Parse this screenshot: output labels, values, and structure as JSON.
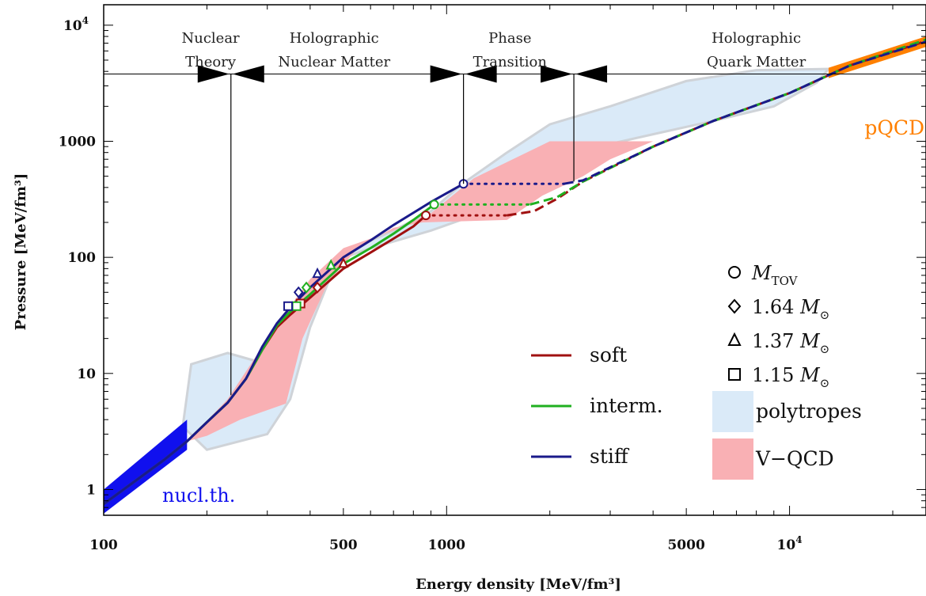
{
  "chart_data": {
    "type": "line",
    "xlabel": "Energy density [MeV/fm³]",
    "ylabel": "Pressure [MeV/fm³]",
    "xscale": "log",
    "yscale": "log",
    "xlim": [
      100,
      25000
    ],
    "ylim": [
      0.6,
      15000
    ],
    "x_ticks": [
      {
        "value": 100,
        "label": "100"
      },
      {
        "value": 500,
        "label": "500"
      },
      {
        "value": 1000,
        "label": "1000"
      },
      {
        "value": 5000,
        "label": "5000"
      },
      {
        "value": 10000,
        "label": "10",
        "sup": "4"
      }
    ],
    "y_ticks": [
      {
        "value": 1,
        "label": "1"
      },
      {
        "value": 10,
        "label": "10"
      },
      {
        "value": 100,
        "label": "100"
      },
      {
        "value": 1000,
        "label": "1000"
      },
      {
        "value": 10000,
        "label": "10",
        "sup": "4"
      }
    ],
    "regions": [
      {
        "line1": "Nuclear",
        "line2": "Theory",
        "x": 205
      },
      {
        "line1": "Holographic",
        "line2": "Nuclear  Matter",
        "x": 470
      },
      {
        "line1": "Phase",
        "line2": "Transition",
        "x": 1530
      },
      {
        "line1": "Holographic",
        "line2": "Quark  Matter",
        "x": 8000
      }
    ],
    "boundaries": [
      {
        "x": 235,
        "y_low": 6.5
      },
      {
        "x": 1120,
        "y_low": 430
      },
      {
        "x": 2350,
        "y_low": 450
      }
    ],
    "region_bar_y": 3800,
    "bands": [
      {
        "name": "polytropes",
        "color": "#daeaf8",
        "points": [
          [
            170,
            3.5
          ],
          [
            180,
            12
          ],
          [
            230,
            15
          ],
          [
            300,
            12
          ],
          [
            350,
            25
          ],
          [
            400,
            55
          ],
          [
            500,
            110
          ],
          [
            700,
            170
          ],
          [
            900,
            250
          ],
          [
            1100,
            420
          ],
          [
            1500,
            800
          ],
          [
            2000,
            1400
          ],
          [
            3000,
            2000
          ],
          [
            5000,
            3300
          ],
          [
            8000,
            4100
          ],
          [
            13000,
            4200
          ],
          [
            12000,
            3200
          ],
          [
            9000,
            2000
          ],
          [
            6000,
            1500
          ],
          [
            4000,
            1150
          ],
          [
            3000,
            950
          ],
          [
            2000,
            600
          ],
          [
            1400,
            270
          ],
          [
            900,
            170
          ],
          [
            600,
            120
          ],
          [
            480,
            95
          ],
          [
            400,
            25
          ],
          [
            350,
            6
          ],
          [
            300,
            3
          ],
          [
            200,
            2.2
          ]
        ]
      },
      {
        "name": "V−QCD",
        "color": "#f9b0b4",
        "points": [
          [
            175,
            2.6
          ],
          [
            230,
            6
          ],
          [
            290,
            17
          ],
          [
            330,
            30
          ],
          [
            400,
            65
          ],
          [
            500,
            120
          ],
          [
            700,
            170
          ],
          [
            900,
            240
          ],
          [
            1200,
            480
          ],
          [
            2000,
            1000
          ],
          [
            4000,
            1000
          ],
          [
            3000,
            700
          ],
          [
            2500,
            500
          ],
          [
            1900,
            340
          ],
          [
            1500,
            210
          ],
          [
            850,
            200
          ],
          [
            700,
            180
          ],
          [
            550,
            120
          ],
          [
            450,
            60
          ],
          [
            380,
            20
          ],
          [
            340,
            5.5
          ],
          [
            250,
            4
          ],
          [
            200,
            2.9
          ]
        ]
      }
    ],
    "nucl_th": {
      "name": "nucl.th.",
      "color": "#1010ee",
      "points": [
        [
          100,
          0.62
        ],
        [
          175,
          2.2
        ],
        [
          175,
          4.0
        ],
        [
          100,
          1.0
        ]
      ]
    },
    "pqcd": {
      "name": "pQCD",
      "color": "#ff8000",
      "points": [
        [
          13000,
          3500
        ],
        [
          25000,
          6500
        ],
        [
          25000,
          8000
        ],
        [
          13000,
          4300
        ]
      ]
    },
    "series": [
      {
        "name": "soft",
        "color": "#a01010",
        "solid": [
          [
            100,
            0.75
          ],
          [
            150,
            1.8
          ],
          [
            175,
            2.6
          ],
          [
            200,
            3.8
          ],
          [
            230,
            5.6
          ],
          [
            260,
            9
          ],
          [
            290,
            16
          ],
          [
            320,
            25
          ],
          [
            350,
            32
          ],
          [
            400,
            45
          ],
          [
            500,
            80
          ],
          [
            600,
            110
          ],
          [
            700,
            145
          ],
          [
            800,
            185
          ],
          [
            870,
            230
          ]
        ],
        "dotted": [
          [
            870,
            230
          ],
          [
            1500,
            230
          ]
        ],
        "dashed": [
          [
            1500,
            230
          ],
          [
            1800,
            250
          ],
          [
            2100,
            320
          ],
          [
            2500,
            450
          ],
          [
            4000,
            900
          ],
          [
            6000,
            1500
          ],
          [
            10000,
            2600
          ],
          [
            15000,
            4500
          ],
          [
            25000,
            7300
          ]
        ]
      },
      {
        "name": "interm.",
        "color": "#20b020",
        "solid": [
          [
            100,
            0.75
          ],
          [
            150,
            1.8
          ],
          [
            175,
            2.6
          ],
          [
            200,
            3.8
          ],
          [
            230,
            5.6
          ],
          [
            260,
            9
          ],
          [
            290,
            16
          ],
          [
            320,
            26
          ],
          [
            350,
            34
          ],
          [
            400,
            48
          ],
          [
            500,
            88
          ],
          [
            600,
            120
          ],
          [
            700,
            160
          ],
          [
            800,
            210
          ],
          [
            920,
            285
          ]
        ],
        "dotted": [
          [
            920,
            285
          ],
          [
            1750,
            285
          ]
        ],
        "dashed": [
          [
            1750,
            285
          ],
          [
            2100,
            330
          ],
          [
            2500,
            450
          ],
          [
            4000,
            900
          ],
          [
            6000,
            1500
          ],
          [
            10000,
            2600
          ],
          [
            15000,
            4500
          ],
          [
            25000,
            7500
          ]
        ]
      },
      {
        "name": "stiff",
        "color": "#1a1a8a",
        "solid": [
          [
            100,
            0.75
          ],
          [
            150,
            1.8
          ],
          [
            175,
            2.6
          ],
          [
            200,
            3.8
          ],
          [
            230,
            5.6
          ],
          [
            260,
            9
          ],
          [
            290,
            17
          ],
          [
            320,
            27
          ],
          [
            350,
            37
          ],
          [
            400,
            55
          ],
          [
            500,
            100
          ],
          [
            600,
            140
          ],
          [
            700,
            190
          ],
          [
            900,
            300
          ],
          [
            1120,
            430
          ]
        ],
        "dotted": [
          [
            1120,
            430
          ],
          [
            2200,
            430
          ]
        ],
        "dashed": [
          [
            2200,
            430
          ],
          [
            2500,
            460
          ],
          [
            4000,
            900
          ],
          [
            6000,
            1500
          ],
          [
            10000,
            2600
          ],
          [
            15000,
            4500
          ],
          [
            25000,
            7200
          ]
        ]
      }
    ],
    "markers": [
      {
        "series": "soft",
        "shape": "circle",
        "x": 870,
        "y": 230
      },
      {
        "series": "interm.",
        "shape": "circle",
        "x": 920,
        "y": 285
      },
      {
        "series": "stiff",
        "shape": "circle",
        "x": 1120,
        "y": 430
      },
      {
        "series": "soft",
        "shape": "diamond",
        "x": 420,
        "y": 55
      },
      {
        "series": "interm.",
        "shape": "diamond",
        "x": 390,
        "y": 55
      },
      {
        "series": "stiff",
        "shape": "diamond",
        "x": 370,
        "y": 50
      },
      {
        "series": "soft",
        "shape": "triangle",
        "x": 500,
        "y": 88
      },
      {
        "series": "interm.",
        "shape": "triangle",
        "x": 460,
        "y": 85
      },
      {
        "series": "stiff",
        "shape": "triangle",
        "x": 420,
        "y": 72
      },
      {
        "series": "soft",
        "shape": "square",
        "x": 375,
        "y": 40
      },
      {
        "series": "interm.",
        "shape": "square",
        "x": 365,
        "y": 38
      },
      {
        "series": "stiff",
        "shape": "square",
        "x": 345,
        "y": 38
      }
    ],
    "legend_lines": [
      {
        "label": "soft",
        "color": "#a01010"
      },
      {
        "label": "interm.",
        "color": "#20b020"
      },
      {
        "label": "stiff",
        "color": "#1a1a8a"
      }
    ],
    "legend_symbols": [
      {
        "shape": "circle",
        "value": "",
        "mass": "M",
        "sub": "TOV"
      },
      {
        "shape": "diamond",
        "value": "1.64",
        "mass": "M",
        "sub": "⊙"
      },
      {
        "shape": "triangle",
        "value": "1.37",
        "mass": "M",
        "sub": "⊙"
      },
      {
        "shape": "square",
        "value": "1.15",
        "mass": "M",
        "sub": "⊙"
      }
    ],
    "legend_bands": [
      {
        "label": "polytropes",
        "color": "#daeaf8"
      },
      {
        "label": "V−QCD",
        "color": "#f9b0b4"
      }
    ]
  }
}
